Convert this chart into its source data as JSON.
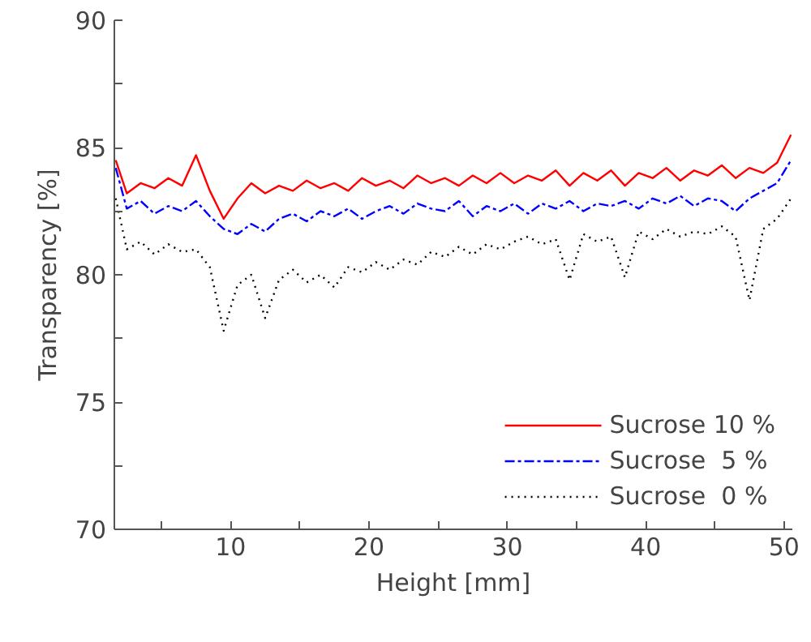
{
  "chart_data": {
    "type": "line",
    "xlabel": "Height [mm]",
    "ylabel": "Transparency [%]",
    "x": [
      1.7,
      2.5,
      3.5,
      4.5,
      5.5,
      6.5,
      7.5,
      8.5,
      9.5,
      10.5,
      11.5,
      12.5,
      13.5,
      14.5,
      15.5,
      16.5,
      17.5,
      18.5,
      19.5,
      20.5,
      21.5,
      22.5,
      23.5,
      24.5,
      25.5,
      26.5,
      27.5,
      28.5,
      29.5,
      30.5,
      31.5,
      32.5,
      33.5,
      34.5,
      35.5,
      36.5,
      37.5,
      38.5,
      39.5,
      40.5,
      41.5,
      42.5,
      43.5,
      44.5,
      45.5,
      46.5,
      47.5,
      48.5,
      49.5,
      50.5
    ],
    "series": [
      {
        "name": "Sucrose 10 %",
        "color": "#ff0000",
        "line_style": "solid",
        "values": [
          84.5,
          83.2,
          83.6,
          83.4,
          83.8,
          83.5,
          84.7,
          83.3,
          82.2,
          83.0,
          83.6,
          83.2,
          83.5,
          83.3,
          83.7,
          83.4,
          83.6,
          83.3,
          83.8,
          83.5,
          83.7,
          83.4,
          83.9,
          83.6,
          83.8,
          83.5,
          83.9,
          83.6,
          84.0,
          83.6,
          83.9,
          83.7,
          84.1,
          83.5,
          84.0,
          83.7,
          84.1,
          83.5,
          84.0,
          83.8,
          84.2,
          83.7,
          84.1,
          83.9,
          84.3,
          83.8,
          84.2,
          84.0,
          84.4,
          85.5
        ]
      },
      {
        "name": "Sucrose  5 %",
        "color": "#0000ff",
        "line_style": "dashdot",
        "values": [
          84.2,
          82.6,
          82.9,
          82.4,
          82.7,
          82.5,
          82.9,
          82.3,
          81.8,
          81.6,
          82.0,
          81.7,
          82.2,
          82.4,
          82.1,
          82.5,
          82.3,
          82.6,
          82.2,
          82.5,
          82.7,
          82.4,
          82.8,
          82.6,
          82.5,
          82.9,
          82.3,
          82.7,
          82.5,
          82.8,
          82.4,
          82.8,
          82.6,
          82.9,
          82.5,
          82.8,
          82.7,
          82.9,
          82.6,
          83.0,
          82.8,
          83.1,
          82.7,
          83.0,
          82.9,
          82.5,
          83.0,
          83.3,
          83.6,
          84.5
        ]
      },
      {
        "name": "Sucrose  0 %",
        "color": "#000000",
        "line_style": "dotted",
        "values": [
          83.0,
          81.0,
          81.3,
          80.8,
          81.2,
          80.9,
          81.0,
          80.3,
          77.8,
          79.6,
          80.0,
          78.3,
          79.8,
          80.2,
          79.7,
          80.0,
          79.5,
          80.3,
          80.1,
          80.5,
          80.2,
          80.6,
          80.4,
          80.9,
          80.7,
          81.1,
          80.8,
          81.2,
          81.0,
          81.3,
          81.5,
          81.2,
          81.4,
          79.8,
          81.6,
          81.3,
          81.5,
          79.9,
          81.7,
          81.4,
          81.8,
          81.5,
          81.7,
          81.6,
          81.9,
          81.5,
          79.0,
          81.8,
          82.2,
          83.0
        ]
      }
    ],
    "xlim": [
      1.6,
      50.6
    ],
    "ylim": [
      70,
      90
    ],
    "xticks": [
      {
        "value": 5,
        "label": null
      },
      10,
      {
        "value": 15,
        "label": null
      },
      20,
      {
        "value": 25,
        "label": null
      },
      30,
      {
        "value": 35,
        "label": null
      },
      40,
      {
        "value": 45,
        "label": null
      },
      50
    ],
    "yticks": [
      70,
      {
        "value": 72.5,
        "label": null
      },
      75,
      {
        "value": 77.5,
        "label": null
      },
      80,
      {
        "value": 82.5,
        "label": null
      },
      85,
      {
        "value": 87.5,
        "label": null
      },
      90
    ],
    "grid": false,
    "legend": "bottom right"
  }
}
